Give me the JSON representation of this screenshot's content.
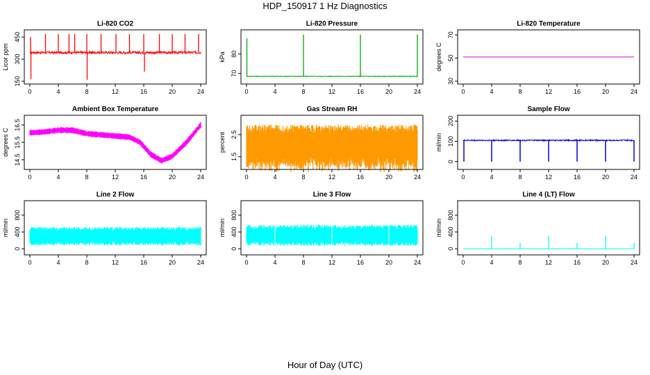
{
  "figure": {
    "title": "HDP_150917  1 Hz Diagnostics",
    "xlabel": "Hour of Day (UTC)"
  },
  "chart_data": [
    {
      "type": "line",
      "key": "co2",
      "title": "Li-820 CO2",
      "ylabel": "Licor ppm",
      "color": "#ff0000",
      "xlim": [
        0,
        24
      ],
      "xticks": [
        0,
        4,
        8,
        12,
        16,
        20,
        24
      ],
      "ylim": [
        150,
        480
      ],
      "yticks": [
        150,
        300,
        450
      ],
      "base": 345,
      "noise": 8,
      "band": 0,
      "spikes": [
        [
          0.1,
          450
        ],
        [
          0.15,
          165
        ],
        [
          2.2,
          470
        ],
        [
          4.0,
          470
        ],
        [
          5.5,
          470
        ],
        [
          6.3,
          470
        ],
        [
          8.0,
          470
        ],
        [
          8.05,
          160
        ],
        [
          10.0,
          470
        ],
        [
          12.1,
          470
        ],
        [
          14.0,
          470
        ],
        [
          16.0,
          470
        ],
        [
          16.1,
          215
        ],
        [
          18.2,
          470
        ],
        [
          20.0,
          470
        ],
        [
          21.8,
          470
        ],
        [
          23.7,
          470
        ]
      ],
      "dips": []
    },
    {
      "type": "line",
      "key": "pressure",
      "title": "Li-820 Pressure",
      "ylabel": "kPa",
      "color": "#00aa00",
      "xlim": [
        0,
        24
      ],
      "xticks": [
        0,
        4,
        8,
        12,
        16,
        20,
        24
      ],
      "ylim": [
        66,
        91
      ],
      "yticks": [
        70,
        80
      ],
      "base": 68.5,
      "noise": 0.15,
      "band": 0,
      "spikes": [
        [
          0.05,
          88
        ],
        [
          8.0,
          90
        ],
        [
          16.0,
          90
        ],
        [
          24.0,
          90
        ]
      ],
      "dips": []
    },
    {
      "type": "line",
      "key": "temperature",
      "title": "Li-820 Temperature",
      "ylabel": "degrees C",
      "color": "#cc00cc",
      "xlim": [
        0,
        24
      ],
      "xticks": [
        0,
        4,
        8,
        12,
        16,
        20,
        24
      ],
      "ylim": [
        30,
        72
      ],
      "yticks": [
        30,
        50,
        70
      ],
      "base": 51,
      "noise": 0,
      "band": 0,
      "spikes": [],
      "dips": []
    },
    {
      "type": "line",
      "key": "ambient",
      "title": "Ambient Box Temperature",
      "ylabel": "degrees C",
      "color": "#ff00ff",
      "xlim": [
        0,
        24
      ],
      "xticks": [
        0,
        4,
        8,
        12,
        16,
        20,
        24
      ],
      "ylim": [
        14.1,
        16.9
      ],
      "yticks": [
        14.5,
        15.5,
        16.5
      ],
      "profile": [
        [
          0,
          16.05
        ],
        [
          2,
          16.1
        ],
        [
          4,
          16.2
        ],
        [
          6,
          16.2
        ],
        [
          8,
          16.0
        ],
        [
          11,
          15.9
        ],
        [
          14,
          15.8
        ],
        [
          15.5,
          15.5
        ],
        [
          17,
          14.8
        ],
        [
          18.5,
          14.45
        ],
        [
          20,
          14.7
        ],
        [
          22,
          15.5
        ],
        [
          23,
          16.0
        ],
        [
          24,
          16.5
        ]
      ],
      "band": 0.35,
      "noise": 0,
      "spikes": [],
      "dips": []
    },
    {
      "type": "line",
      "key": "rh",
      "title": "Gas Stream RH",
      "ylabel": "percent",
      "color": "#ff9900",
      "xlim": [
        0,
        24
      ],
      "xticks": [
        0,
        4,
        8,
        12,
        16,
        20,
        24
      ],
      "ylim": [
        1.05,
        3.25
      ],
      "yticks": [
        1.5,
        2.5
      ],
      "base": 2.1,
      "band": 1.7,
      "noise": 0,
      "spikes": [],
      "dips": []
    },
    {
      "type": "line",
      "key": "sample",
      "title": "Sample Flow",
      "ylabel": "ml/min",
      "color": "#0000dd",
      "xlim": [
        0,
        24
      ],
      "xticks": [
        0,
        4,
        8,
        12,
        16,
        20,
        24
      ],
      "ylim": [
        -25,
        215
      ],
      "yticks": [
        0,
        100,
        200
      ],
      "base": 105,
      "noise": 3,
      "band": 0,
      "spikes": [],
      "dips": [
        [
          0.1,
          0
        ],
        [
          4.0,
          0
        ],
        [
          8.0,
          0
        ],
        [
          12.0,
          0
        ],
        [
          16.0,
          0
        ],
        [
          20.0,
          0
        ],
        [
          24.0,
          0
        ]
      ]
    },
    {
      "type": "line",
      "key": "line2",
      "title": "Line 2 Flow",
      "ylabel": "ml/min",
      "color": "#00ffff",
      "xlim": [
        0,
        24
      ],
      "xticks": [
        0,
        4,
        8,
        12,
        16,
        20,
        24
      ],
      "ylim": [
        -80,
        1080
      ],
      "yticks": [
        0,
        400,
        800
      ],
      "base": 300,
      "band": 440,
      "noise": 0,
      "spikes": [],
      "dips": []
    },
    {
      "type": "line",
      "key": "line3",
      "title": "Line 3 Flow",
      "ylabel": "ml/min",
      "color": "#00ffff",
      "xlim": [
        0,
        24
      ],
      "xticks": [
        0,
        4,
        8,
        12,
        16,
        20,
        24
      ],
      "ylim": [
        -80,
        1080
      ],
      "yticks": [
        0,
        400,
        800
      ],
      "base": 320,
      "band": 500,
      "noise": 0,
      "spikes": [],
      "dips": [
        [
          4.0,
          20
        ],
        [
          12.0,
          20
        ],
        [
          20.0,
          20
        ]
      ]
    },
    {
      "type": "line",
      "key": "line4",
      "title": "Line 4 (LT) Flow",
      "ylabel": "ml/min",
      "color": "#00ffff",
      "xlim": [
        0,
        24
      ],
      "xticks": [
        0,
        4,
        8,
        12,
        16,
        20,
        24
      ],
      "ylim": [
        -80,
        1080
      ],
      "yticks": [
        0,
        400,
        800
      ],
      "base": 0,
      "noise": 3,
      "band": 0,
      "spikes": [
        [
          4.0,
          300
        ],
        [
          8.0,
          140
        ],
        [
          12.0,
          300
        ],
        [
          16.0,
          140
        ],
        [
          20.0,
          300
        ],
        [
          24.0,
          140
        ]
      ],
      "dips": []
    }
  ]
}
